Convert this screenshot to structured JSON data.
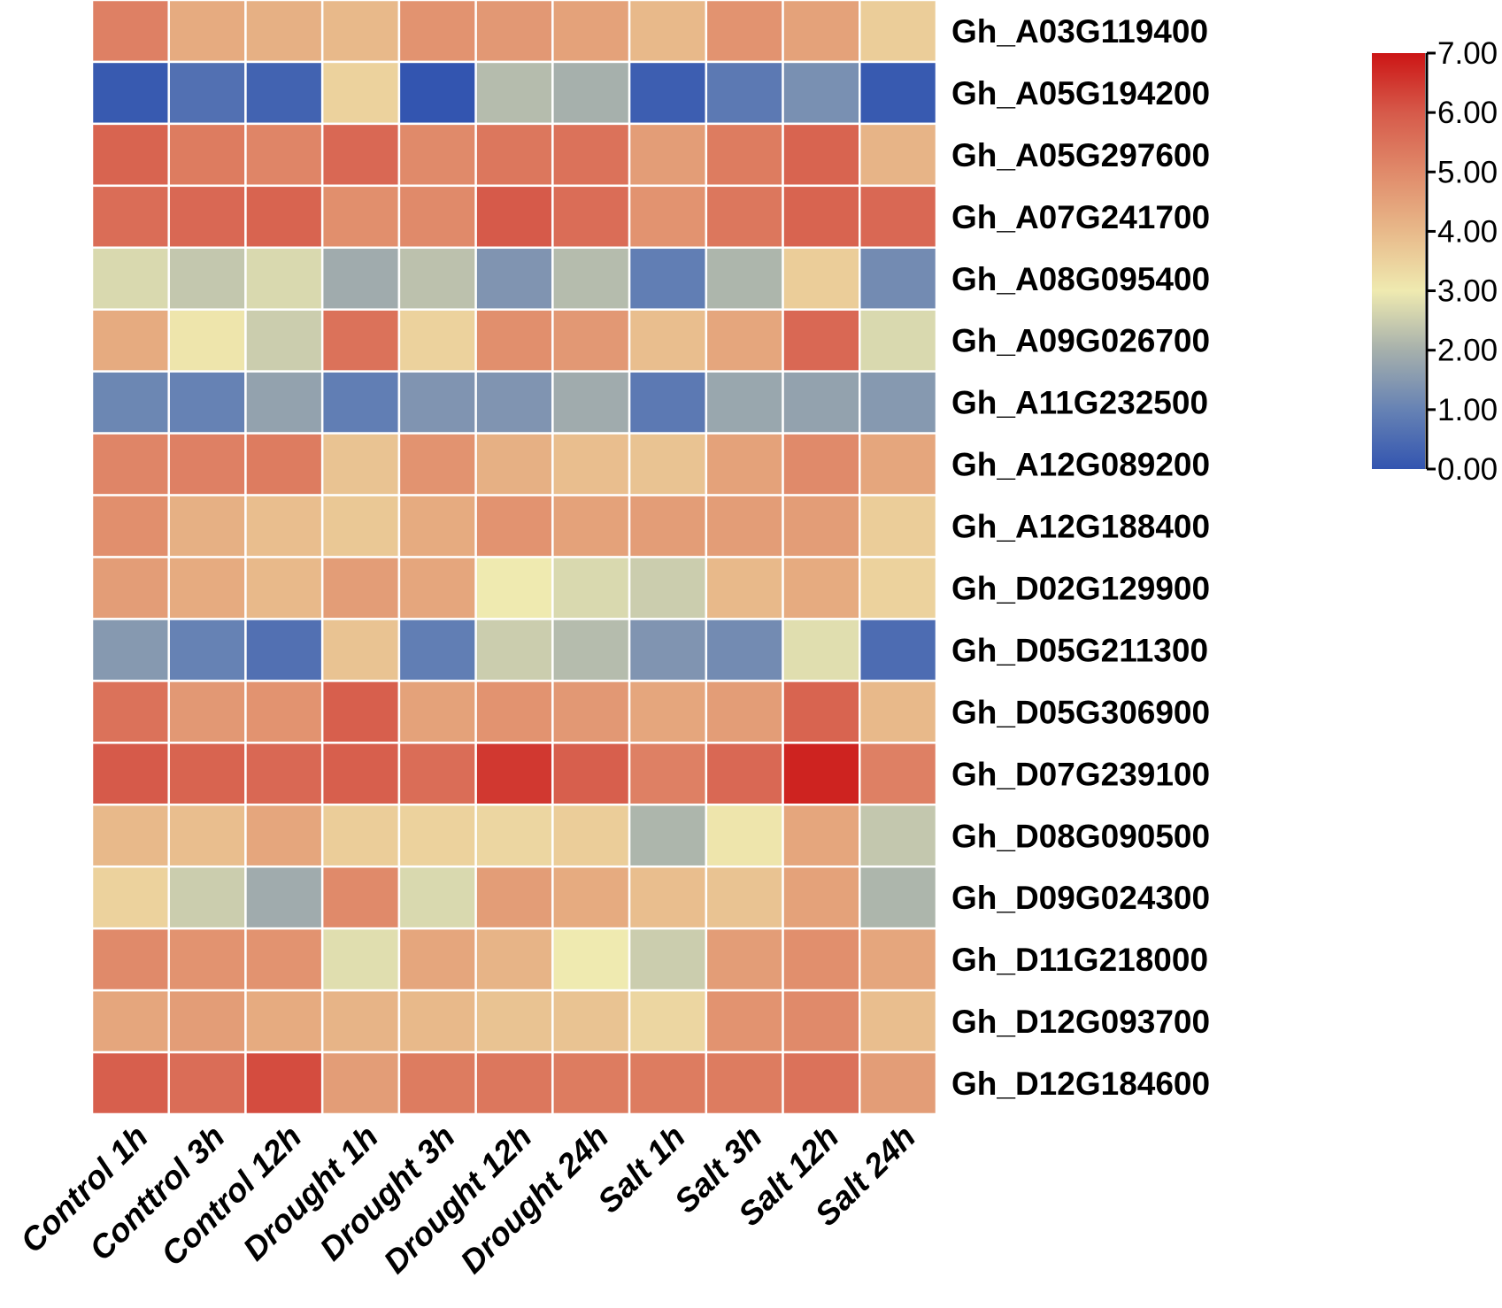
{
  "chart_data": {
    "type": "heatmap",
    "title": "",
    "columns": [
      "Control 1h",
      "Conttrol 3h",
      "Control 12h",
      "Drought 1h",
      "Drought 3h",
      "Drought 12h",
      "Drought 24h",
      "Salt 1h",
      "Salt 3h",
      "Salt 12h",
      "Salt 24h"
    ],
    "rows": [
      "Gh_A03G119400",
      "Gh_A05G194200",
      "Gh_A05G297600",
      "Gh_A07G241700",
      "Gh_A08G095400",
      "Gh_A09G026700",
      "Gh_A11G232500",
      "Gh_A12G089200",
      "Gh_A12G188400",
      "Gh_D02G129900",
      "Gh_D05G211300",
      "Gh_D05G306900",
      "Gh_D07G239100",
      "Gh_D08G090500",
      "Gh_D09G024300",
      "Gh_D11G218000",
      "Gh_D12G093700",
      "Gh_D12G184600"
    ],
    "values": [
      [
        5.2,
        4.3,
        4.2,
        4.0,
        4.8,
        4.7,
        4.5,
        4.0,
        4.8,
        4.5,
        3.6
      ],
      [
        0.1,
        0.6,
        0.3,
        3.5,
        0.0,
        2.2,
        2.0,
        0.2,
        0.8,
        1.3,
        0.1
      ],
      [
        5.8,
        5.3,
        5.1,
        5.7,
        5.0,
        5.4,
        5.5,
        4.6,
        5.3,
        5.8,
        4.1
      ],
      [
        5.6,
        5.7,
        5.8,
        4.9,
        5.0,
        6.0,
        5.6,
        4.8,
        5.4,
        5.8,
        5.7
      ],
      [
        2.7,
        2.4,
        2.7,
        1.9,
        2.3,
        1.4,
        2.2,
        0.9,
        2.1,
        3.6,
        1.2
      ],
      [
        4.3,
        3.1,
        2.5,
        5.5,
        3.5,
        4.9,
        4.7,
        3.9,
        4.4,
        5.7,
        2.7
      ],
      [
        1.1,
        1.0,
        1.7,
        0.9,
        1.4,
        1.4,
        1.9,
        0.8,
        1.8,
        1.7,
        1.5
      ],
      [
        5.1,
        5.2,
        5.3,
        3.8,
        4.8,
        4.2,
        3.9,
        3.8,
        4.5,
        5.0,
        4.4
      ],
      [
        4.9,
        4.2,
        3.9,
        3.7,
        4.3,
        4.8,
        4.5,
        4.6,
        4.6,
        4.6,
        3.6
      ],
      [
        4.6,
        4.3,
        4.0,
        4.6,
        4.4,
        3.0,
        2.7,
        2.5,
        4.0,
        4.3,
        3.5
      ],
      [
        1.5,
        1.0,
        0.6,
        3.8,
        0.9,
        2.5,
        2.2,
        1.4,
        1.2,
        2.8,
        0.5
      ],
      [
        5.5,
        4.7,
        4.8,
        5.9,
        4.5,
        4.8,
        4.7,
        4.4,
        4.6,
        5.8,
        4.0
      ],
      [
        6.0,
        5.8,
        5.7,
        5.9,
        5.6,
        6.5,
        5.9,
        5.2,
        5.7,
        6.8,
        5.2
      ],
      [
        4.0,
        3.9,
        4.4,
        3.6,
        3.5,
        3.4,
        3.6,
        2.1,
        3.1,
        4.4,
        2.4
      ],
      [
        3.5,
        2.5,
        1.9,
        5.0,
        2.7,
        4.6,
        4.3,
        3.9,
        3.8,
        4.5,
        2.1
      ],
      [
        5.0,
        4.8,
        4.8,
        2.8,
        4.4,
        4.1,
        3.0,
        2.5,
        4.6,
        4.9,
        4.4
      ],
      [
        4.4,
        4.6,
        4.3,
        4.1,
        4.0,
        3.8,
        3.8,
        3.4,
        4.8,
        5.0,
        3.9
      ],
      [
        5.9,
        5.6,
        6.2,
        4.6,
        5.3,
        5.4,
        5.3,
        5.3,
        5.3,
        5.5,
        4.6
      ]
    ],
    "colorbar": {
      "min": 0,
      "max": 7,
      "ticks": [
        "0.00",
        "1.00",
        "2.00",
        "3.00",
        "4.00",
        "5.00",
        "6.00",
        "7.00"
      ]
    },
    "colormap": [
      "#3355b0",
      "#6682b4",
      "#a6b0ac",
      "#efeab0",
      "#e8b98a",
      "#e08a6a",
      "#d65a4a",
      "#cc1515"
    ],
    "legend_position": "right"
  }
}
